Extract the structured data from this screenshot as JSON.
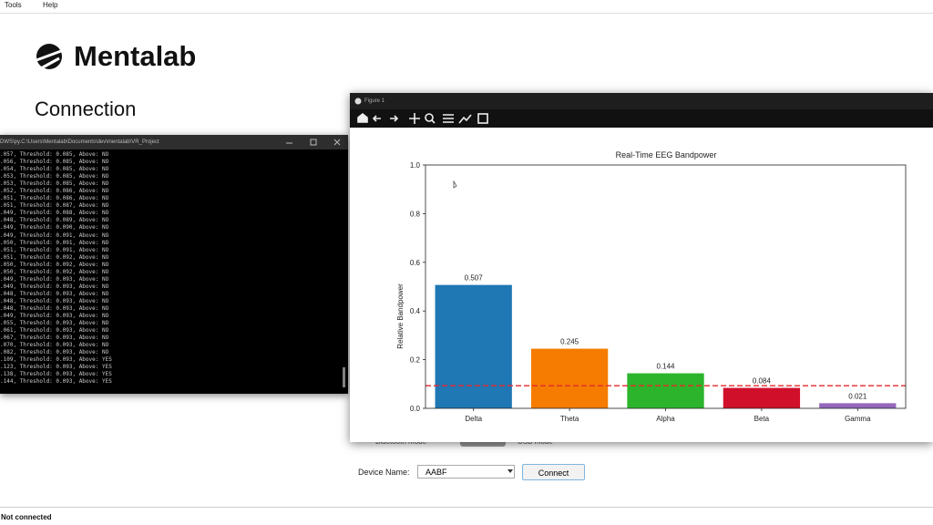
{
  "menu": [
    "Tools",
    "Help"
  ],
  "app": {
    "logo_text": "Mentalab",
    "heading": "Connection",
    "mode_left": "Bluetooth mode",
    "mode_right": "USB mode",
    "device_label": "Device Name:",
    "device_value": "AABF",
    "connect_button": "Connect",
    "status": "Not connected"
  },
  "console": {
    "title": "DWS\\py.C:\\Users\\Mentalab\\Documents\\dev\\mentalab\\VR_Project",
    "lines": [
      ".057, Threshold: 0.085, Above: NO",
      ".056, Threshold: 0.085, Above: NO",
      ".054, Threshold: 0.085, Above: NO",
      ".053, Threshold: 0.085, Above: NO",
      ".053, Threshold: 0.085, Above: NO",
      ".052, Threshold: 0.086, Above: NO",
      ".051, Threshold: 0.086, Above: NO",
      ".051, Threshold: 0.087, Above: NO",
      ".049, Threshold: 0.088, Above: NO",
      ".048, Threshold: 0.089, Above: NO",
      ".049, Threshold: 0.090, Above: NO",
      ".049, Threshold: 0.091, Above: NO",
      ".050, Threshold: 0.091, Above: NO",
      ".051, Threshold: 0.091, Above: NO",
      ".051, Threshold: 0.092, Above: NO",
      ".050, Threshold: 0.092, Above: NO",
      ".050, Threshold: 0.092, Above: NO",
      ".049, Threshold: 0.093, Above: NO",
      ".049, Threshold: 0.093, Above: NO",
      ".048, Threshold: 0.093, Above: NO",
      ".048, Threshold: 0.093, Above: NO",
      ".048, Threshold: 0.093, Above: NO",
      ".049, Threshold: 0.093, Above: NO",
      ".055, Threshold: 0.093, Above: NO",
      ".061, Threshold: 0.093, Above: NO",
      ".067, Threshold: 0.093, Above: NO",
      ".070, Threshold: 0.093, Above: NO",
      ".082, Threshold: 0.093, Above: NO",
      ".109, Threshold: 0.093, Above: YES",
      ".123, Threshold: 0.093, Above: YES",
      ".138, Threshold: 0.093, Above: YES",
      ".144, Threshold: 0.093, Above: YES"
    ]
  },
  "figure_window": {
    "title": "Figure 1"
  },
  "chart_data": {
    "type": "bar",
    "title": "Real-Time EEG Bandpower",
    "y_label": "Relative Bandpower",
    "categories": [
      "Delta",
      "Theta",
      "Alpha",
      "Beta",
      "Gamma"
    ],
    "values": [
      0.507,
      0.245,
      0.144,
      0.084,
      0.021
    ],
    "colors": [
      "#1f77b4",
      "#f57c00",
      "#2cb52c",
      "#d0102a",
      "#9467bd"
    ],
    "ylim": [
      0,
      1
    ],
    "yticks": [
      {
        "value": 0,
        "label": "0.0"
      },
      0.2,
      0.4,
      0.6,
      0.8,
      {
        "value": 1,
        "label": "1.0"
      }
    ],
    "threshold": 0.093,
    "threshold_color": "#e8282a"
  }
}
